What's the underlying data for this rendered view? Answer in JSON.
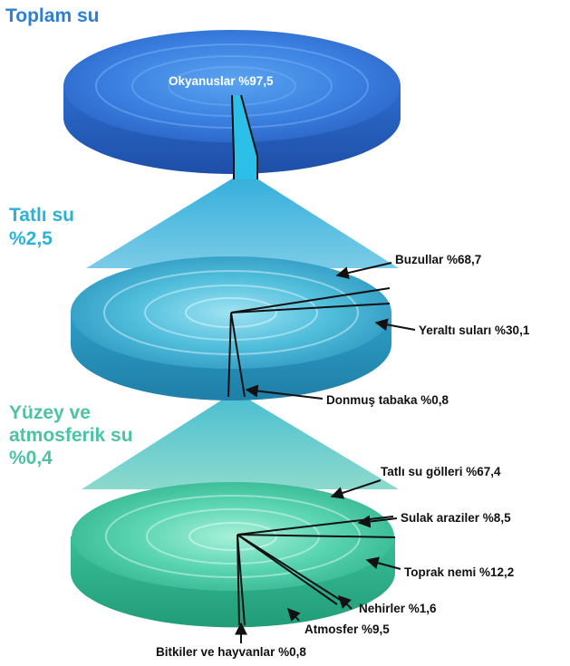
{
  "titles": {
    "total": "Toplam su",
    "fresh_line1": "Tatlı su",
    "fresh_line2": "%2,5",
    "surface_line1": "Yüzey ve",
    "surface_line2": "atmosferik su",
    "surface_line3": "%0,4"
  },
  "labels": {
    "oceans": "Okyanuslar %97,5",
    "glaciers": "Buzullar %68,7",
    "groundwater": "Yeraltı suları %30,1",
    "permafrost": "Donmuş tabaka %0,8",
    "lakes": "Tatlı su gölleri %67,4",
    "wetlands": "Sulak araziler %8,5",
    "soil": "Toprak nemi %12,2",
    "rivers": "Nehirler %1,6",
    "atmosphere": "Atmosfer %9,5",
    "biota": "Bitkiler ve hayvanlar %0,8"
  },
  "colors": {
    "total_title": "#2f7fd0",
    "fresh_title": "#2ab3d6",
    "surface_title": "#4cc3a6",
    "disk_top": "#3a7fe0",
    "disk_middle": "#37a9cf",
    "disk_bottom": "#3cc7a2"
  }
}
